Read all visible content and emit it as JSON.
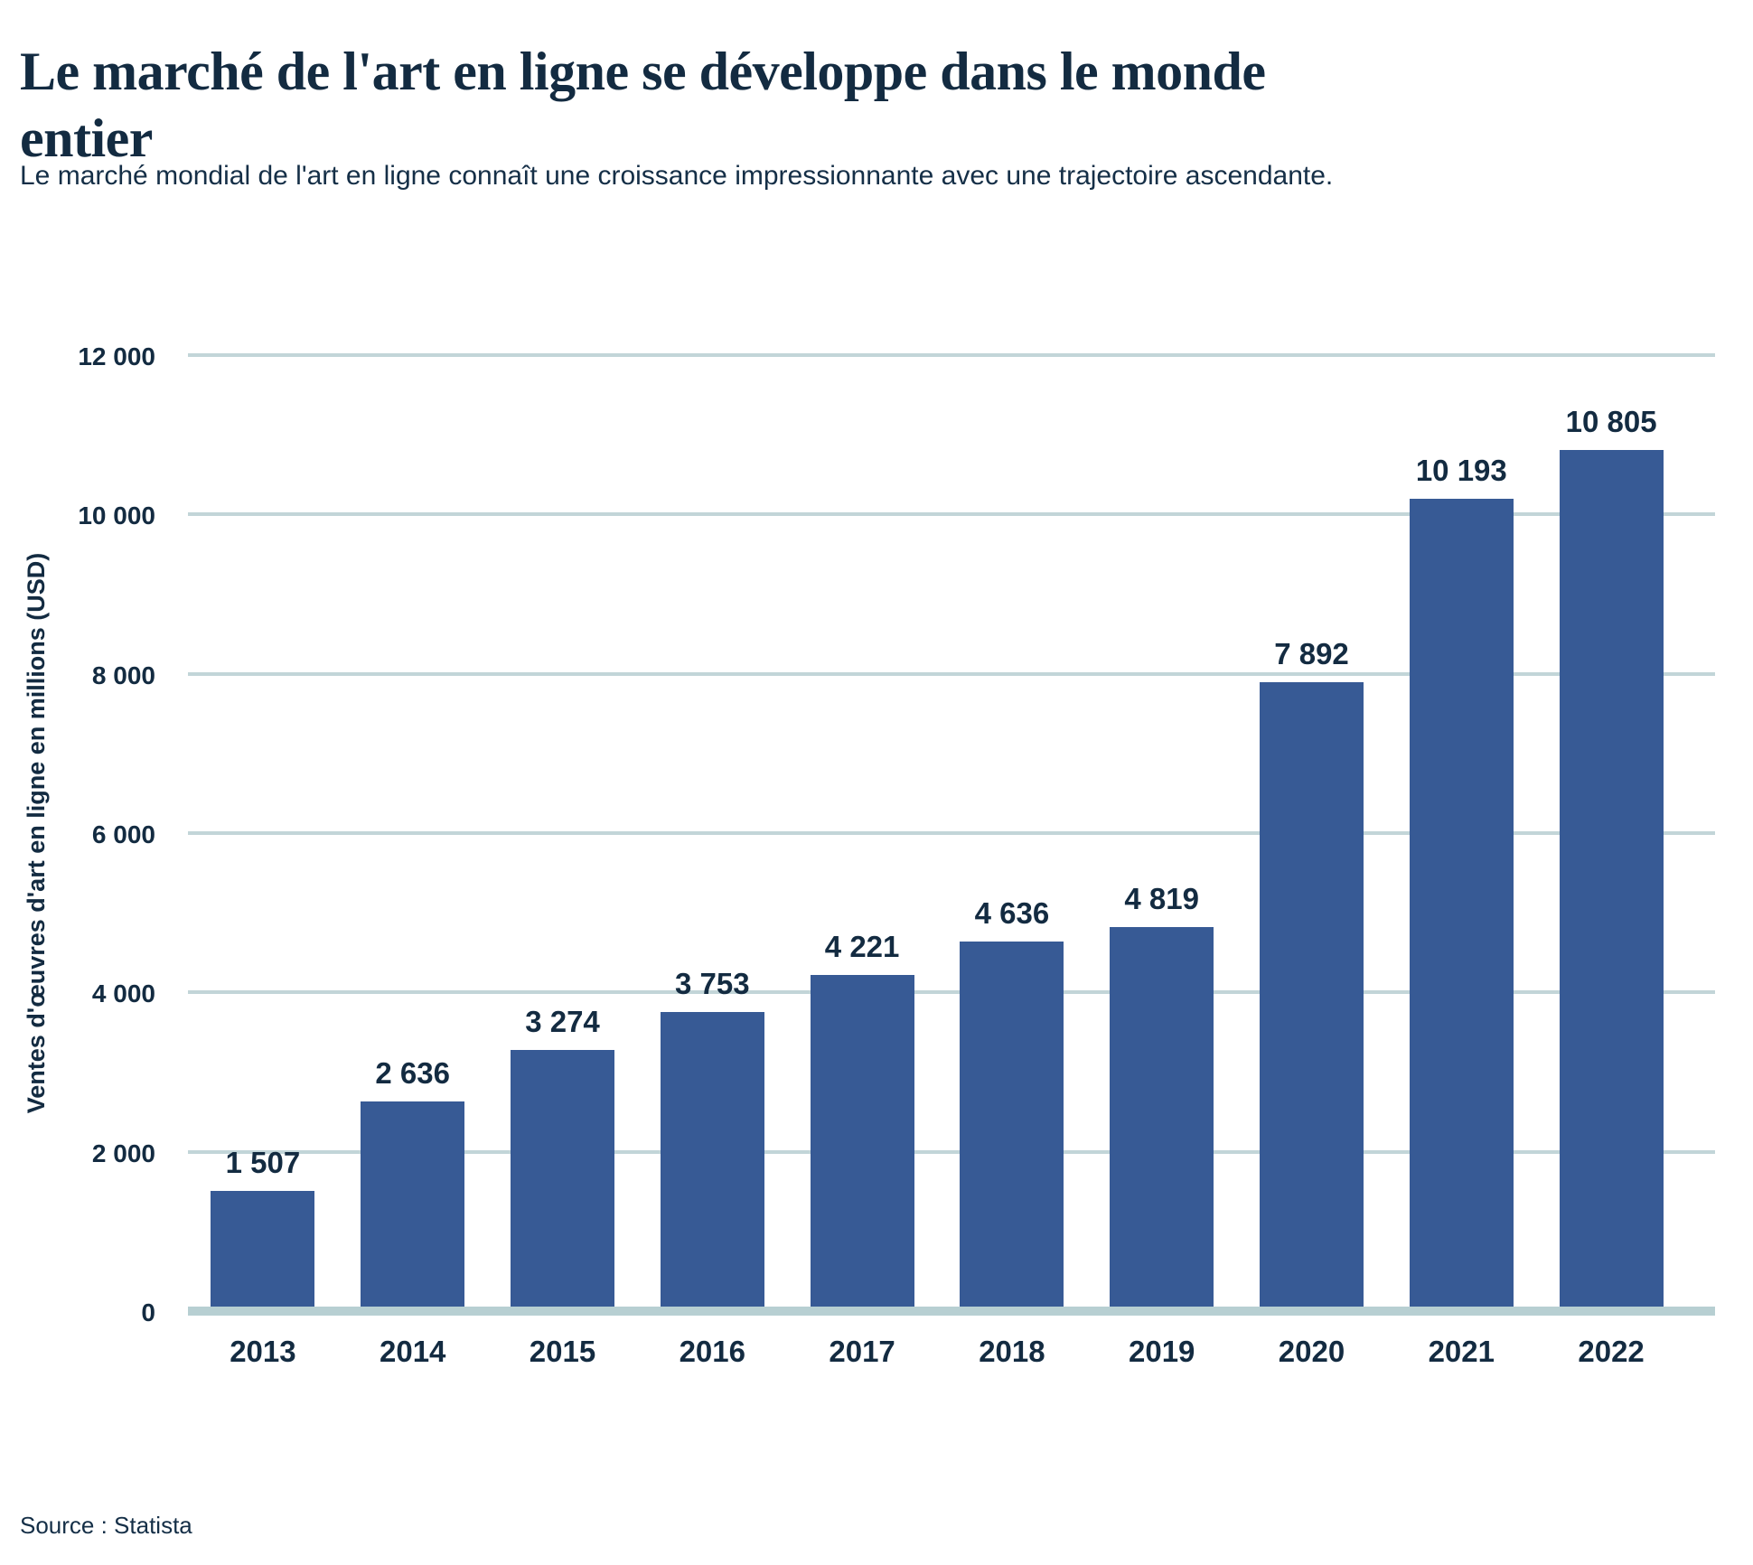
{
  "page": {
    "title_line1": "Le marché de l'art en ligne se développe dans le monde",
    "title_line2": "entier",
    "subtitle": "Le marché mondial de l'art en ligne connaît une croissance impressionnante avec une trajectoire ascendante.",
    "source": "Source : Statista"
  },
  "colors": {
    "bar": "#375a95",
    "gridline": "#c2d5d8",
    "baseline": "#b7cfd2",
    "text": "#132b41"
  },
  "chart_data": {
    "type": "bar",
    "title": "Le marché de l'art en ligne se développe dans le monde entier",
    "subtitle": "Le marché mondial de l'art en ligne connaît une croissance impressionnante avec une trajectoire ascendante.",
    "categories": [
      "2013",
      "2014",
      "2015",
      "2016",
      "2017",
      "2018",
      "2019",
      "2020",
      "2021",
      "2022"
    ],
    "values": [
      1507,
      2636,
      3274,
      3753,
      4221,
      4636,
      4819,
      7892,
      10193,
      10805
    ],
    "value_labels": [
      "1 507",
      "2 636",
      "3 274",
      "3 753",
      "4 221",
      "4 636",
      "4 819",
      "7 892",
      "10 193",
      "10 805"
    ],
    "xlabel": "",
    "ylabel": "Ventes d'œuvres d'art en ligne en millions (USD)",
    "ylim": [
      0,
      12000
    ],
    "yticks": [
      0,
      2000,
      4000,
      6000,
      8000,
      10000,
      12000
    ],
    "ytick_labels": [
      "0",
      "2 000",
      "4 000",
      "6 000",
      "8 000",
      "10 000",
      "12 000"
    ],
    "grid": "horizontal",
    "legend": "none",
    "source": "Source : Statista"
  }
}
